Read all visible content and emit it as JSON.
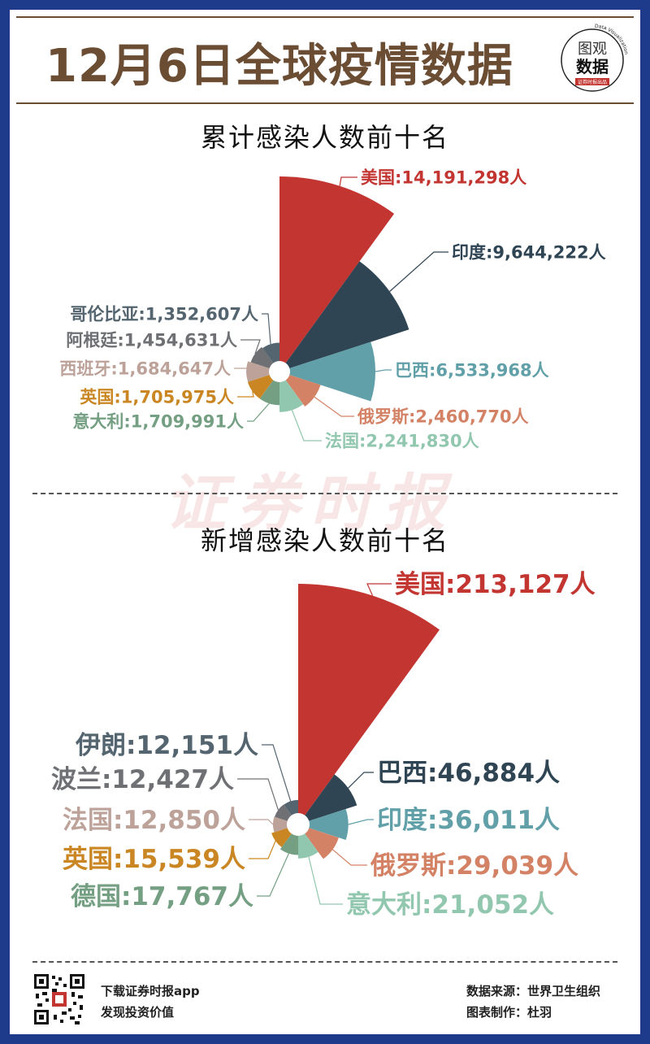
{
  "header": {
    "title": "12月6日全球疫情数据",
    "logo_line1": "图观",
    "logo_line2": "数据",
    "logo_arc": "Data Visualization",
    "logo_sub": "证券时报出品"
  },
  "watermark": "证券时报",
  "footer": {
    "download": "下载证券时报app",
    "discover": "发现投资价值",
    "source": "数据来源：世界卫生组织",
    "author": "图表制作：杜羽"
  },
  "colors": {
    "美国": "#c23531",
    "印度": "#2f4554",
    "巴西": "#61a0a8",
    "俄罗斯": "#d48265",
    "法国": "#91c7ae",
    "意大利": "#749f83",
    "英国": "#ca8622",
    "西班牙": "#bda29a",
    "阿根廷": "#6e7074",
    "哥伦比亚": "#546570",
    "frame": "#1e3a8a",
    "title_brown": "#6b4d34"
  },
  "chart_data": [
    {
      "type": "pie",
      "variant": "rose",
      "title": "累计感染人数前十名",
      "slices": [
        {
          "name": "美国",
          "value": 14191298,
          "label": "美国:14,191,298人",
          "color": "#c23531"
        },
        {
          "name": "印度",
          "value": 9644222,
          "label": "印度:9,644,222人",
          "color": "#2f4554"
        },
        {
          "name": "巴西",
          "value": 6533968,
          "label": "巴西:6,533,968人",
          "color": "#61a0a8"
        },
        {
          "name": "俄罗斯",
          "value": 2460770,
          "label": "俄罗斯:2,460,770人",
          "color": "#d48265"
        },
        {
          "name": "法国",
          "value": 2241830,
          "label": "法国:2,241,830人",
          "color": "#91c7ae"
        },
        {
          "name": "意大利",
          "value": 1709991,
          "label": "意大利:1,709,991人",
          "color": "#749f83"
        },
        {
          "name": "英国",
          "value": 1705975,
          "label": "英国:1,705,975人",
          "color": "#ca8622"
        },
        {
          "name": "西班牙",
          "value": 1684647,
          "label": "西班牙:1,684,647人",
          "color": "#bda29a"
        },
        {
          "name": "阿根廷",
          "value": 1454631,
          "label": "阿根廷:1,454,631人",
          "color": "#6e7074"
        },
        {
          "name": "哥伦比亚",
          "value": 1352607,
          "label": "哥伦比亚:1,352,607人",
          "color": "#546570"
        }
      ]
    },
    {
      "type": "pie",
      "variant": "rose",
      "title": "新增感染人数前十名",
      "slices": [
        {
          "name": "美国",
          "value": 213127,
          "label": "美国:213,127人",
          "color": "#c23531"
        },
        {
          "name": "巴西",
          "value": 46884,
          "label": "巴西:46,884人",
          "color": "#2f4554"
        },
        {
          "name": "印度",
          "value": 36011,
          "label": "印度:36,011人",
          "color": "#61a0a8"
        },
        {
          "name": "俄罗斯",
          "value": 29039,
          "label": "俄罗斯:29,039人",
          "color": "#d48265"
        },
        {
          "name": "意大利",
          "value": 21052,
          "label": "意大利:21,052人",
          "color": "#91c7ae"
        },
        {
          "name": "德国",
          "value": 17767,
          "label": "德国:17,767人",
          "color": "#749f83"
        },
        {
          "name": "英国",
          "value": 15539,
          "label": "英国:15,539人",
          "color": "#ca8622"
        },
        {
          "name": "法国",
          "value": 12850,
          "label": "法国:12,850人",
          "color": "#bda29a"
        },
        {
          "name": "波兰",
          "value": 12427,
          "label": "波兰:12,427人",
          "color": "#6e7074"
        },
        {
          "name": "伊朗",
          "value": 12151,
          "label": "伊朗:12,151人",
          "color": "#546570"
        }
      ]
    }
  ]
}
